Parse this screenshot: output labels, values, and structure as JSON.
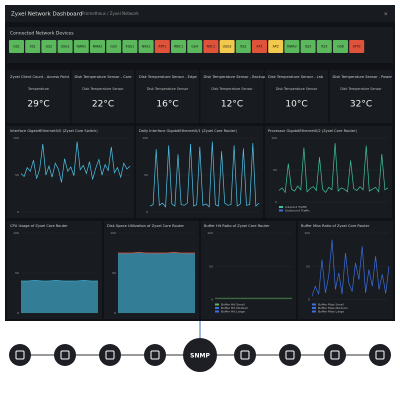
{
  "header": {
    "title": "Zyxel Network Dashboard",
    "subtitle": "Prometheus / Zyxel Network"
  },
  "devices": {
    "title": "Connected Network Devices",
    "items": [
      {
        "label": "GS1",
        "color": "#5cb85c"
      },
      {
        "label": "XS1",
        "color": "#5cb85c"
      },
      {
        "label": "GS2",
        "color": "#5cb85c"
      },
      {
        "label": "USG1",
        "color": "#5cb85c"
      },
      {
        "label": "NWA1",
        "color": "#5cb85c"
      },
      {
        "label": "NWA2",
        "color": "#5cb85c"
      },
      {
        "label": "GS3",
        "color": "#5cb85c"
      },
      {
        "label": "XGS1",
        "color": "#5cb85c"
      },
      {
        "label": "NAS1",
        "color": "#5cb85c"
      },
      {
        "label": "ATP1",
        "color": "#e0533b"
      },
      {
        "label": "WAC1",
        "color": "#5cb85c"
      },
      {
        "label": "GS4",
        "color": "#5cb85c"
      },
      {
        "label": "NXC1",
        "color": "#e0533b"
      },
      {
        "label": "USG2",
        "color": "#f2c94c"
      },
      {
        "label": "XS2",
        "color": "#5cb85c"
      },
      {
        "label": "AP1",
        "color": "#e0533b"
      },
      {
        "label": "AP2",
        "color": "#f2c94c"
      },
      {
        "label": "NWA3",
        "color": "#5cb85c"
      },
      {
        "label": "GS5",
        "color": "#5cb85c"
      },
      {
        "label": "XS3",
        "color": "#5cb85c"
      },
      {
        "label": "GS6",
        "color": "#5cb85c"
      },
      {
        "label": "ATP2",
        "color": "#e0533b"
      }
    ]
  },
  "stats": [
    {
      "title": "Zyxel Client Count - Access Point",
      "label": "Temperature",
      "value": "29°C"
    },
    {
      "title": "Disk Temperature Sensor - Core",
      "label": "Disk Temperature Sensor",
      "value": "22°C"
    },
    {
      "title": "Disk Temperature Sensor - Edge",
      "label": "Disk Temperature Sensor",
      "value": "16°C"
    },
    {
      "title": "Disk Temperature Sensor - Backup",
      "label": "Disk Temperature Sensor",
      "value": "12°C"
    },
    {
      "title": "Disk Temperature Sensor - Lab",
      "label": "Disk Temperature Sensor",
      "value": "10°C"
    },
    {
      "title": "Disk Temperature Sensor - Power",
      "label": "Disk Temperature Sensor",
      "value": "32°C"
    }
  ],
  "line_panels": [
    {
      "title": "Interface GigabitEthernet0/0 (Zyxel Core Switch)",
      "color": "#4fc3e8",
      "ylim": [
        0,
        100
      ],
      "yticks": [
        0,
        50,
        100
      ],
      "values": [
        52,
        48,
        60,
        55,
        70,
        45,
        58,
        92,
        50,
        62,
        47,
        66,
        58,
        40,
        72,
        55,
        61,
        49,
        95,
        57,
        63,
        52,
        68,
        44,
        59,
        71,
        50,
        64,
        56,
        88,
        53,
        60,
        47,
        66,
        58,
        62
      ]
    },
    {
      "title": "Daily Interface GigabitEthernet0/1 (Zyxel Core Router)",
      "color": "#4fc3e8",
      "ylim": [
        0,
        100
      ],
      "yticks": [
        0,
        50,
        100
      ],
      "values": [
        8,
        10,
        85,
        9,
        12,
        7,
        90,
        11,
        8,
        78,
        10,
        9,
        12,
        92,
        8,
        10,
        88,
        9,
        11,
        7,
        95,
        10,
        8,
        82,
        12,
        9,
        10,
        90,
        8,
        11,
        86,
        9,
        10,
        93,
        8,
        12
      ]
    },
    {
      "title": "Processor GigabitEthernet0/2 (Zyxel Core Router)",
      "color": "#3fc1a0",
      "ylim": [
        0,
        100
      ],
      "yticks": [
        0,
        50,
        100
      ],
      "legend": [
        "Inbound Traffic",
        "Outbound Traffic"
      ],
      "values": [
        18,
        22,
        15,
        60,
        20,
        17,
        25,
        19,
        85,
        16,
        21,
        24,
        18,
        70,
        20,
        15,
        23,
        19,
        92,
        17,
        22,
        20,
        16,
        65,
        21,
        18,
        24,
        19,
        88,
        17,
        20,
        23,
        16,
        75,
        19,
        22
      ]
    }
  ],
  "bottom_panels": [
    {
      "title": "CPU Usage of Zyxel Core Router",
      "color": "#3fa7c9",
      "area": true,
      "ylim": [
        0,
        100
      ],
      "yticks": [
        0,
        50,
        100
      ],
      "values": [
        40,
        40,
        41,
        40,
        40,
        41,
        40,
        40,
        40,
        41,
        40,
        40
      ]
    },
    {
      "title": "Disk Space Utilization of Zyxel Core Router",
      "color": "#3fa7c9",
      "area": true,
      "ylim": [
        0,
        100
      ],
      "yticks": [
        0,
        50,
        100
      ],
      "values": [
        75,
        75,
        75,
        76,
        75,
        75,
        75,
        75,
        76,
        75,
        75,
        75
      ]
    },
    {
      "title": "Buffer Hit Ratio of Zyxel Core Router",
      "color": "#5cb85c",
      "area": false,
      "ylim": [
        0,
        100
      ],
      "yticks": [
        0,
        50,
        100
      ],
      "legend": [
        "Buffer Hit Small",
        "Buffer Hit Medium",
        "Buffer Hit Large"
      ],
      "values": [
        2,
        2,
        2,
        2,
        2,
        2,
        2,
        2,
        2,
        2,
        2,
        2
      ]
    },
    {
      "title": "Buffer Miss Ratio of Zyxel Core Router",
      "color": "#3b6fe0",
      "area": false,
      "ylim": [
        0,
        100
      ],
      "yticks": [
        0,
        50,
        100
      ],
      "legend": [
        "Buffer Miss Small",
        "Buffer Miss Medium",
        "Buffer Miss Large"
      ],
      "values": [
        5,
        20,
        8,
        60,
        10,
        35,
        90,
        15,
        40,
        8,
        70,
        25,
        12,
        55,
        30,
        80,
        10,
        45,
        20,
        65,
        15,
        38,
        9,
        50
      ]
    }
  ],
  "hub": {
    "label": "SNMP"
  }
}
